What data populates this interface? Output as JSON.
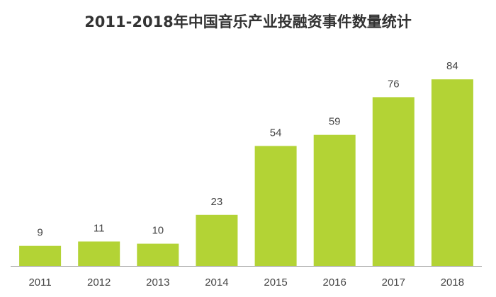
{
  "chart_data": {
    "type": "bar",
    "title": "2011-2018年中国音乐产业投融资事件数量统计",
    "xlabel": "",
    "ylabel": "",
    "categories": [
      "2011",
      "2012",
      "2013",
      "2014",
      "2015",
      "2016",
      "2017",
      "2018"
    ],
    "values": [
      9,
      11,
      10,
      23,
      54,
      59,
      76,
      84
    ],
    "ylim": [
      0,
      90
    ],
    "grid": false,
    "legend": "none",
    "bar_color": "#b3d335",
    "axis_color": "#999999"
  }
}
